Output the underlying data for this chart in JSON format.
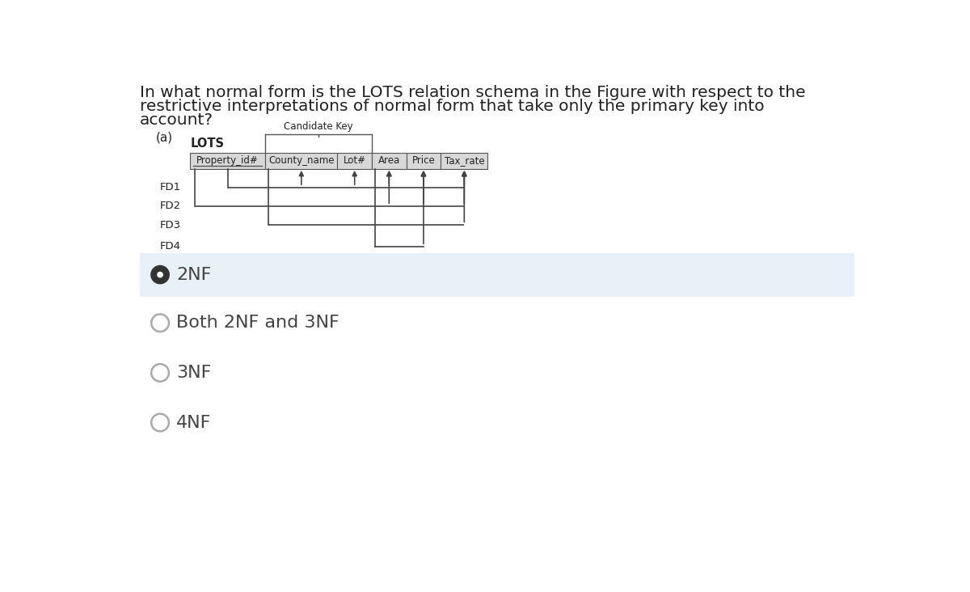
{
  "question_text_line1": "In what normal form is the LOTS relation schema in the Figure with respect to the",
  "question_text_line2": "restrictive interpretations of normal form that take only the primary key into",
  "question_text_line3": "account?",
  "candidate_key_label": "Candidate Key",
  "part_label": "(a)",
  "relation_name": "LOTS",
  "columns": [
    "Property_id#",
    "County_name",
    "Lot#",
    "Area",
    "Price",
    "Tax_rate"
  ],
  "fd_labels": [
    "FD1",
    "FD2",
    "FD3",
    "FD4"
  ],
  "options": [
    "2NF",
    "Both 2NF and 3NF",
    "3NF",
    "4NF"
  ],
  "selected_option": 0,
  "bg_color": "#ffffff",
  "selected_bg_color": "#e8f1f8",
  "table_header_color": "#d8d8d8",
  "table_border_color": "#555555",
  "fd_line_color": "#444444",
  "text_color": "#222222",
  "option_text_color": "#444444",
  "radio_border_color": "#aaaaaa",
  "radio_fill_color": "#333333"
}
